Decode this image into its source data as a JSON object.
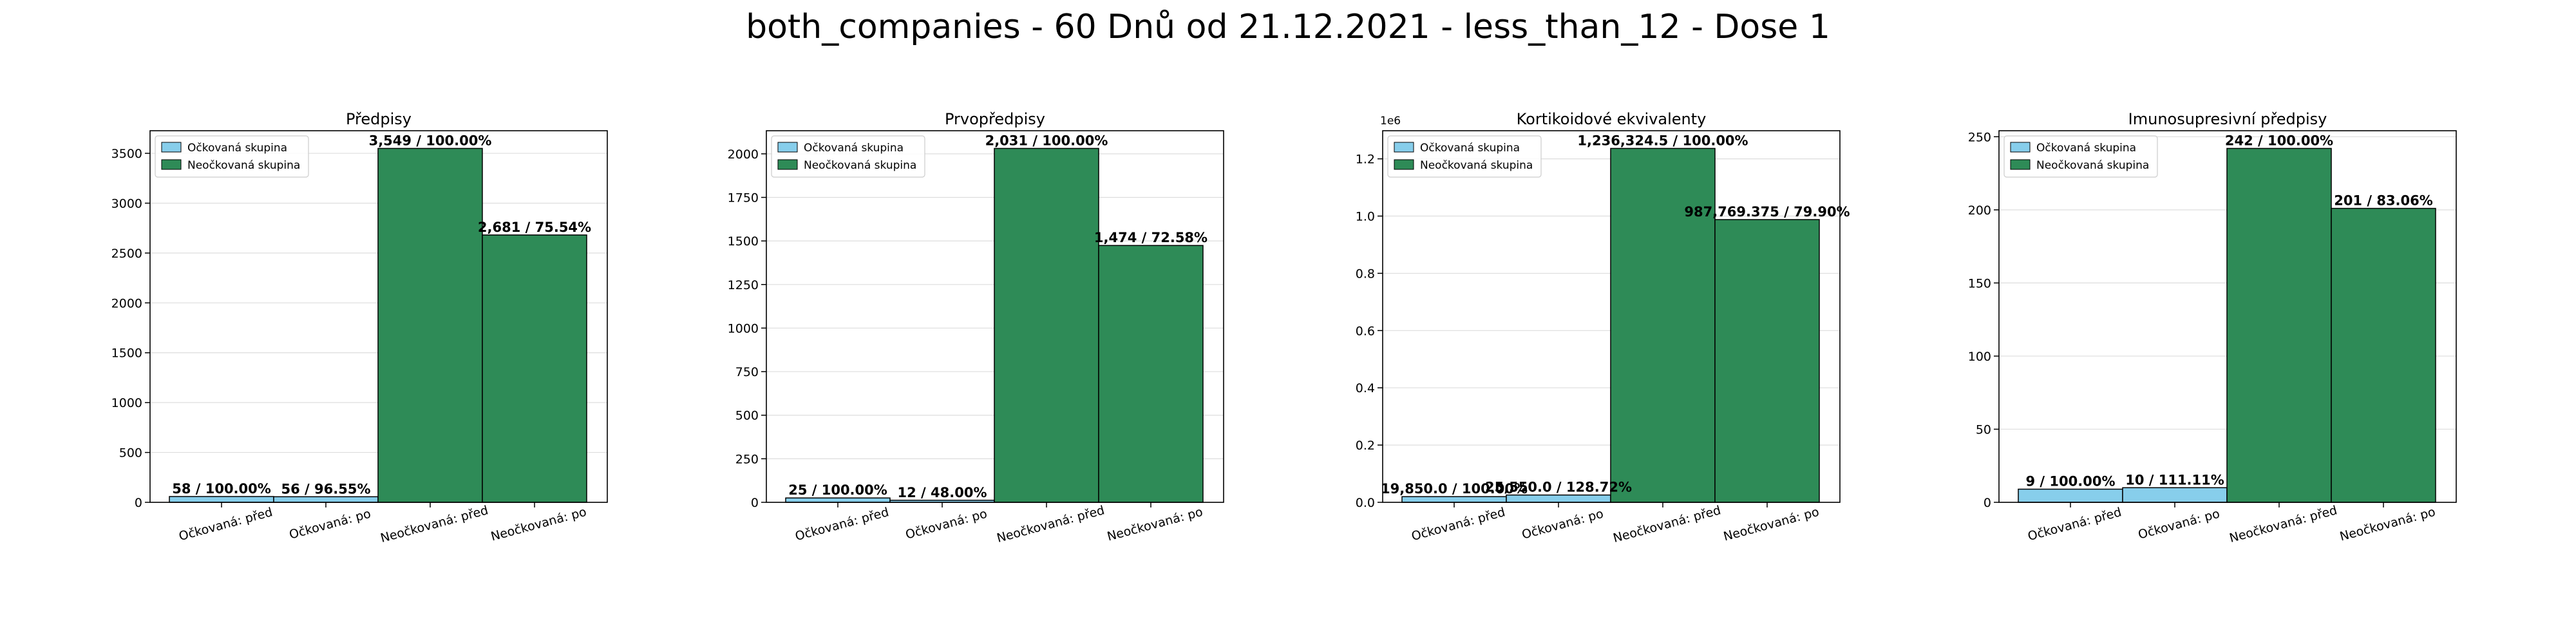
{
  "suptitle": "both_companies - 60 Dnů od 21.12.2021 - less_than_12 - Dose 1",
  "colors": {
    "vaccinated": "#87ceeb",
    "unvaccinated": "#2e8b57",
    "edge": "#000000",
    "grid": "#dddddd"
  },
  "chart_data": [
    {
      "type": "bar",
      "title": "Předpisy",
      "categories": [
        "Očkovaná: před",
        "Očkovaná: po",
        "Neočkovaná: před",
        "Neočkovaná: po"
      ],
      "values": [
        58,
        56,
        3549,
        2681
      ],
      "bar_labels": [
        "58 / 100.00%",
        "56 / 96.55%",
        "3,549 / 100.00%",
        "2,681 / 75.54%"
      ],
      "series_of_bar": [
        0,
        0,
        1,
        1
      ],
      "series": [
        {
          "name": "Očkovaná skupina"
        },
        {
          "name": "Neočkovaná skupina"
        }
      ],
      "yticks": [
        0,
        500,
        1000,
        1500,
        2000,
        2500,
        3000,
        3500
      ],
      "ytick_labels": [
        "0",
        "500",
        "1000",
        "1500",
        "2000",
        "2500",
        "3000",
        "3500"
      ],
      "ylim": [
        0,
        3726.45
      ],
      "offset_text": "",
      "grid": "y",
      "legend": "upper-left"
    },
    {
      "type": "bar",
      "title": "Prvopředpisy",
      "categories": [
        "Očkovaná: před",
        "Očkovaná: po",
        "Neočkovaná: před",
        "Neočkovaná: po"
      ],
      "values": [
        25,
        12,
        2031,
        1474
      ],
      "bar_labels": [
        "25 / 100.00%",
        "12 / 48.00%",
        "2,031 / 100.00%",
        "1,474 / 72.58%"
      ],
      "series_of_bar": [
        0,
        0,
        1,
        1
      ],
      "series": [
        {
          "name": "Očkovaná skupina"
        },
        {
          "name": "Neočkovaná skupina"
        }
      ],
      "yticks": [
        0,
        250,
        500,
        750,
        1000,
        1250,
        1500,
        1750,
        2000
      ],
      "ytick_labels": [
        "0",
        "250",
        "500",
        "750",
        "1000",
        "1250",
        "1500",
        "1750",
        "2000"
      ],
      "ylim": [
        0,
        2132.55
      ],
      "offset_text": "",
      "grid": "y",
      "legend": "upper-left"
    },
    {
      "type": "bar",
      "title": "Kortikoidové ekvivalenty",
      "categories": [
        "Očkovaná: před",
        "Očkovaná: po",
        "Neočkovaná: před",
        "Neočkovaná: po"
      ],
      "values": [
        19850.0,
        25550.0,
        1236324.5,
        987769.375
      ],
      "bar_labels": [
        "19,850.0 / 100.00%",
        "25,550.0 / 128.72%",
        "1,236,324.5 / 100.00%",
        "987,769.375 / 79.90%"
      ],
      "series_of_bar": [
        0,
        0,
        1,
        1
      ],
      "series": [
        {
          "name": "Očkovaná skupina"
        },
        {
          "name": "Neočkovaná skupina"
        }
      ],
      "yticks": [
        0,
        200000,
        400000,
        600000,
        800000,
        1000000,
        1200000
      ],
      "ytick_labels": [
        "0.0",
        "0.2",
        "0.4",
        "0.6",
        "0.8",
        "1.0",
        "1.2"
      ],
      "ylim": [
        0,
        1298140.7
      ],
      "offset_text": "1e6",
      "grid": "y",
      "legend": "upper-left"
    },
    {
      "type": "bar",
      "title": "Imunosupresivní předpisy",
      "categories": [
        "Očkovaná: před",
        "Očkovaná: po",
        "Neočkovaná: před",
        "Neočkovaná: po"
      ],
      "values": [
        9,
        10,
        242,
        201
      ],
      "bar_labels": [
        "9 / 100.00%",
        "10 / 111.11%",
        "242 / 100.00%",
        "201 / 83.06%"
      ],
      "series_of_bar": [
        0,
        0,
        1,
        1
      ],
      "series": [
        {
          "name": "Očkovaná skupina"
        },
        {
          "name": "Neočkovaná skupina"
        }
      ],
      "yticks": [
        0,
        50,
        100,
        150,
        200,
        250
      ],
      "ytick_labels": [
        "0",
        "50",
        "100",
        "150",
        "200",
        "250"
      ],
      "ylim": [
        0,
        254.1
      ],
      "offset_text": "",
      "grid": "y",
      "legend": "upper-left"
    }
  ]
}
